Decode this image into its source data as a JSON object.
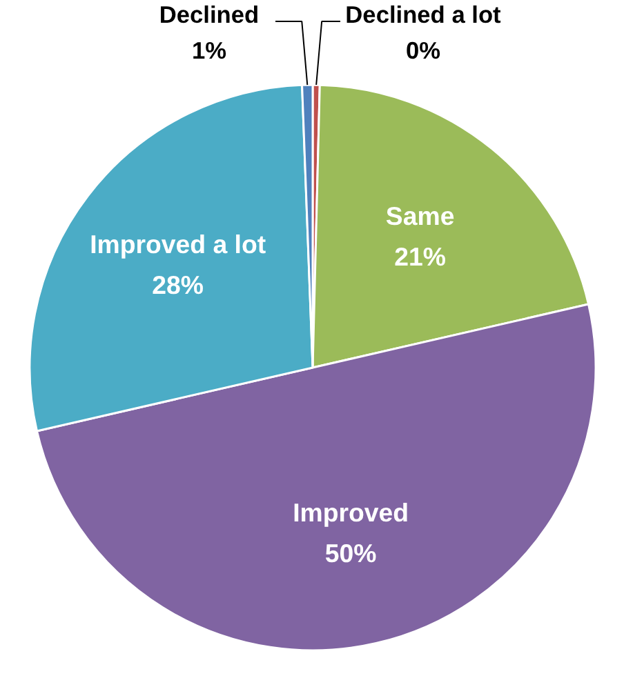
{
  "chart_data": {
    "type": "pie",
    "categories": [
      "Declined a lot",
      "Same",
      "Improved",
      "Improved a lot",
      "Declined"
    ],
    "values": [
      0.4,
      21,
      50,
      28,
      0.6
    ],
    "value_labels": [
      "0%",
      "21%",
      "50%",
      "28%",
      "1%"
    ],
    "colors": [
      "#c0504d",
      "#9bbb59",
      "#8064a2",
      "#4bacc6",
      "#4f81bd"
    ]
  }
}
